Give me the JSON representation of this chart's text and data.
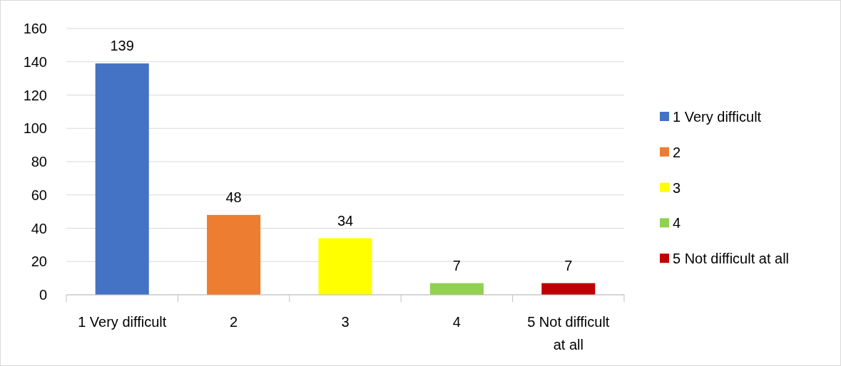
{
  "chart_data": {
    "type": "bar",
    "categories": [
      "1 Very difficult",
      "2",
      "3",
      "4",
      "5 Not difficult at all"
    ],
    "stacked": true,
    "series": [
      {
        "name": "1 Very difficult",
        "color": "#4472c4",
        "values": [
          139,
          null,
          null,
          null,
          null
        ]
      },
      {
        "name": "2",
        "color": "#ed7d31",
        "values": [
          null,
          48,
          null,
          null,
          null
        ]
      },
      {
        "name": "3",
        "color": "#ffff00",
        "values": [
          null,
          null,
          34,
          null,
          null
        ]
      },
      {
        "name": "4",
        "color": "#92d050",
        "values": [
          null,
          null,
          null,
          7,
          null
        ]
      },
      {
        "name": "5 Not difficult at all",
        "color": "#c00000",
        "values": [
          null,
          null,
          null,
          null,
          7
        ]
      }
    ],
    "ylim": [
      0,
      160
    ],
    "yticks": [
      0,
      20,
      40,
      60,
      80,
      100,
      120,
      140,
      160
    ],
    "grid": "y",
    "data_labels": true,
    "legend": "right"
  }
}
